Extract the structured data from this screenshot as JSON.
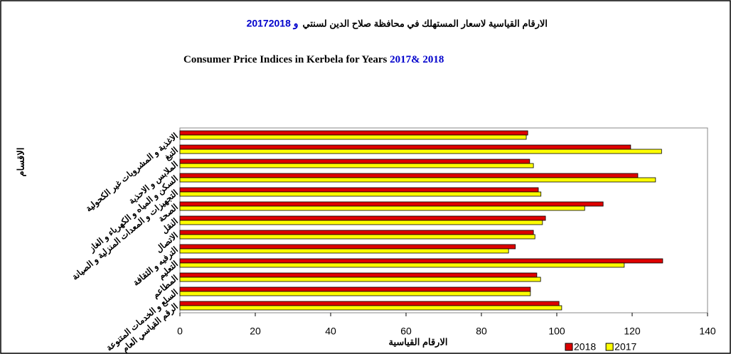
{
  "chart_data": {
    "type": "bar",
    "orientation": "horizontal",
    "title_ar": "الارقام القياسية لاسعار المستهلك في محافظة صلاح الدين لسنتي",
    "title_ar_years": "2017و 2018",
    "title_en": "Consumer Price Indices in Kerbela for Years",
    "title_en_years": "2017& 2018",
    "x_label": "الارقام القياسية",
    "y_label": "الاقسام",
    "categories": [
      "الاغذية و المشروبات غير الكحولية",
      "التبغ",
      "الملابس و الاحذية",
      "السكن و المياه و الكهرباء و الغاز",
      "التجهيزات و المعدات المنزلية و الصيانة",
      "الصحة",
      "النقل",
      "الاتصال",
      "الترفيه و الثقافة",
      "التعليم",
      "المطاعم",
      "السلع و الخدمات المتنوعة",
      "الرقم القياسي العام"
    ],
    "series": [
      {
        "name": "2018",
        "color": "#dd0000",
        "values": [
          92.3,
          119.6,
          92.8,
          121.5,
          95.1,
          112.3,
          97.0,
          93.8,
          89.0,
          128.1,
          94.7,
          93.0,
          100.6
        ]
      },
      {
        "name": "2017",
        "color": "#ffff00",
        "values": [
          91.9,
          127.8,
          93.8,
          126.2,
          95.8,
          107.4,
          96.2,
          94.2,
          87.2,
          117.9,
          95.7,
          93.0,
          101.3
        ]
      }
    ],
    "xlim": [
      0,
      140
    ],
    "xticks": [
      0,
      20,
      40,
      60,
      80,
      100,
      120,
      140
    ],
    "legend": "bottom-right"
  }
}
